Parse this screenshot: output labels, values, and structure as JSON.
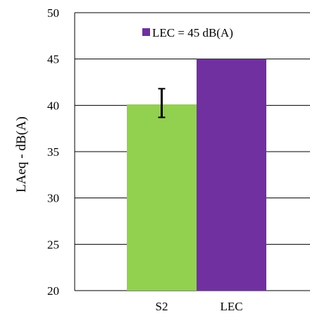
{
  "chart_data": {
    "type": "bar",
    "categories": [
      "S2",
      "LEC"
    ],
    "values": [
      40.1,
      45
    ],
    "error": [
      {
        "low": 38.7,
        "high": 41.8
      },
      null
    ],
    "bar_colors": [
      "#92D050",
      "#7030A0"
    ],
    "ylabel": "LAeq - dB(A)",
    "ylim": [
      20,
      50
    ],
    "yticks": [
      20,
      25,
      30,
      35,
      40,
      45,
      50
    ],
    "grid": true,
    "legend": {
      "label": "LEC = 45 dB(A)",
      "color": "#7030A0",
      "position": "top-right"
    }
  }
}
